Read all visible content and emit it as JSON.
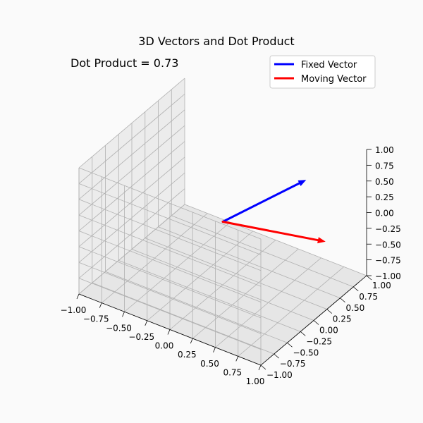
{
  "chart_data": {
    "type": "line",
    "title": "3D Vectors and Dot Product",
    "annotation": "Dot Product = 0.73",
    "xlim": [
      -1,
      1
    ],
    "ylim": [
      -1,
      1
    ],
    "zlim": [
      -1,
      1
    ],
    "x_ticks": [
      "−1.00",
      "−0.75",
      "−0.50",
      "−0.25",
      "0.00",
      "0.25",
      "0.50",
      "0.75",
      "1.00"
    ],
    "y_ticks": [
      "−1.00",
      "−0.75",
      "−0.50",
      "−0.25",
      "0.00",
      "0.25",
      "0.50",
      "0.75",
      "1.00"
    ],
    "z_ticks": [
      "−1.00",
      "−0.75",
      "−0.50",
      "−0.25",
      "0.00",
      "0.25",
      "0.50",
      "0.75",
      "1.00"
    ],
    "grid": true,
    "legend_position": "top-right",
    "series": [
      {
        "name": "Fixed Vector",
        "color": "#0000ff",
        "origin": [
          0,
          0,
          0
        ],
        "vector": [
          0.58,
          0.58,
          0.58
        ]
      },
      {
        "name": "Moving Vector",
        "color": "#ff0000",
        "origin": [
          0,
          0,
          0
        ],
        "vector": [
          0.95,
          0.31,
          0.0
        ]
      }
    ]
  }
}
